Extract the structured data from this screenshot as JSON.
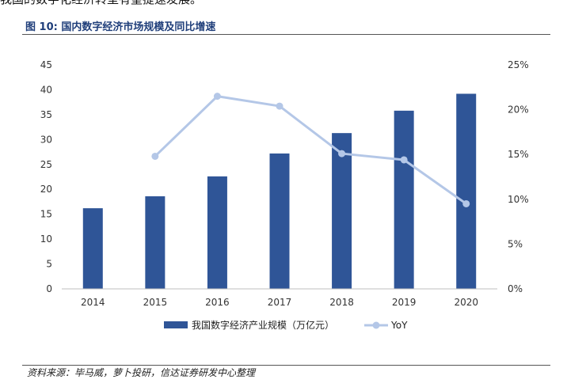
{
  "header": {
    "top_text": "我国的数字化经济转型有望提速发展。",
    "figure_title": "图 10:  国内数字经济市场规模及同比增速"
  },
  "source": "资料来源：毕马威，萝卜投研，信达证券研发中心整理",
  "colors": {
    "bar": "#2f5597",
    "line": "#b4c7e7",
    "title": "#1f3e7a"
  },
  "chart_data": {
    "type": "bar",
    "categories": [
      "2014",
      "2015",
      "2016",
      "2017",
      "2018",
      "2019",
      "2020"
    ],
    "series": [
      {
        "name": "我国数字经济产业规模（万亿元）",
        "type": "bar",
        "axis": "left",
        "values": [
          16.2,
          18.6,
          22.6,
          27.2,
          31.3,
          35.8,
          39.2
        ]
      },
      {
        "name": "YoY",
        "type": "line",
        "axis": "right",
        "values": [
          null,
          0.148,
          0.215,
          0.204,
          0.151,
          0.144,
          0.095
        ]
      }
    ],
    "y_left": {
      "min": 0,
      "max": 45,
      "ticks": [
        "0",
        "5",
        "10",
        "15",
        "20",
        "25",
        "30",
        "35",
        "40",
        "45"
      ]
    },
    "y_right": {
      "min": 0,
      "max": 0.25,
      "ticks": [
        "0%",
        "5%",
        "10%",
        "15%",
        "20%",
        "25%"
      ]
    },
    "legend": {
      "position": "bottom",
      "entries": [
        "我国数字经济产业规模（万亿元）",
        "YoY"
      ]
    },
    "grid": false
  }
}
